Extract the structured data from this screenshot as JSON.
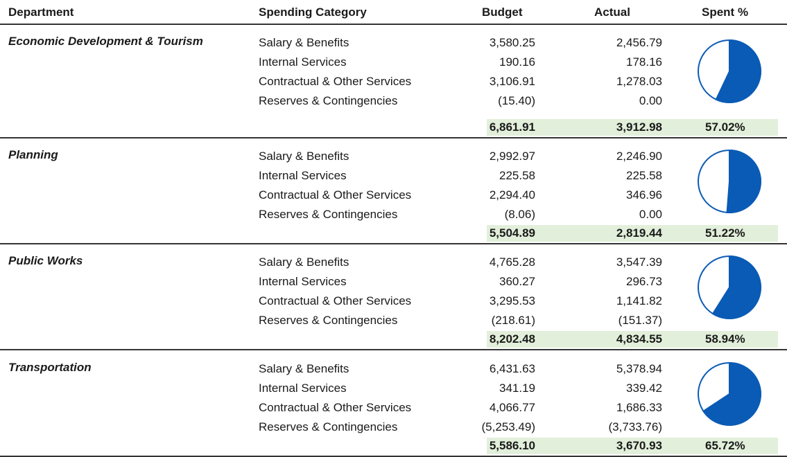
{
  "header": {
    "department": "Department",
    "category": "Spending Category",
    "budget": "Budget",
    "actual": "Actual",
    "spent": "Spent %"
  },
  "departments": [
    {
      "name": "Economic Development & Tourism",
      "rows": [
        {
          "category": "Salary & Benefits",
          "budget": "3,580.25",
          "actual": "2,456.79"
        },
        {
          "category": "Internal Services",
          "budget": "190.16",
          "actual": "178.16"
        },
        {
          "category": "Contractual & Other Services",
          "budget": "3,106.91",
          "actual": "1,278.03"
        },
        {
          "category": "Reserves & Contingencies",
          "budget": "(15.40)",
          "actual": "0.00"
        }
      ],
      "total": {
        "budget": "6,861.91",
        "actual": "3,912.98",
        "spent": "57.02%"
      }
    },
    {
      "name": "Planning",
      "rows": [
        {
          "category": "Salary & Benefits",
          "budget": "2,992.97",
          "actual": "2,246.90"
        },
        {
          "category": "Internal Services",
          "budget": "225.58",
          "actual": "225.58"
        },
        {
          "category": "Contractual & Other Services",
          "budget": "2,294.40",
          "actual": "346.96"
        },
        {
          "category": "Reserves & Contingencies",
          "budget": "(8.06)",
          "actual": "0.00"
        }
      ],
      "total": {
        "budget": "5,504.89",
        "actual": "2,819.44",
        "spent": "51.22%"
      }
    },
    {
      "name": "Public Works",
      "rows": [
        {
          "category": "Salary & Benefits",
          "budget": "4,765.28",
          "actual": "3,547.39"
        },
        {
          "category": "Internal Services",
          "budget": "360.27",
          "actual": "296.73"
        },
        {
          "category": "Contractual & Other Services",
          "budget": "3,295.53",
          "actual": "1,141.82"
        },
        {
          "category": "Reserves & Contingencies",
          "budget": "(218.61)",
          "actual": "(151.37)"
        }
      ],
      "total": {
        "budget": "8,202.48",
        "actual": "4,834.55",
        "spent": "58.94%"
      }
    },
    {
      "name": "Transportation",
      "rows": [
        {
          "category": "Salary & Benefits",
          "budget": "6,431.63",
          "actual": "5,378.94"
        },
        {
          "category": "Internal Services",
          "budget": "341.19",
          "actual": "339.42"
        },
        {
          "category": "Contractual & Other Services",
          "budget": "4,066.77",
          "actual": "1,686.33"
        },
        {
          "category": "Reserves & Contingencies",
          "budget": "(5,253.49)",
          "actual": "(3,733.76)"
        }
      ],
      "total": {
        "budget": "5,586.10",
        "actual": "3,670.93",
        "spent": "65.72%"
      }
    }
  ]
}
